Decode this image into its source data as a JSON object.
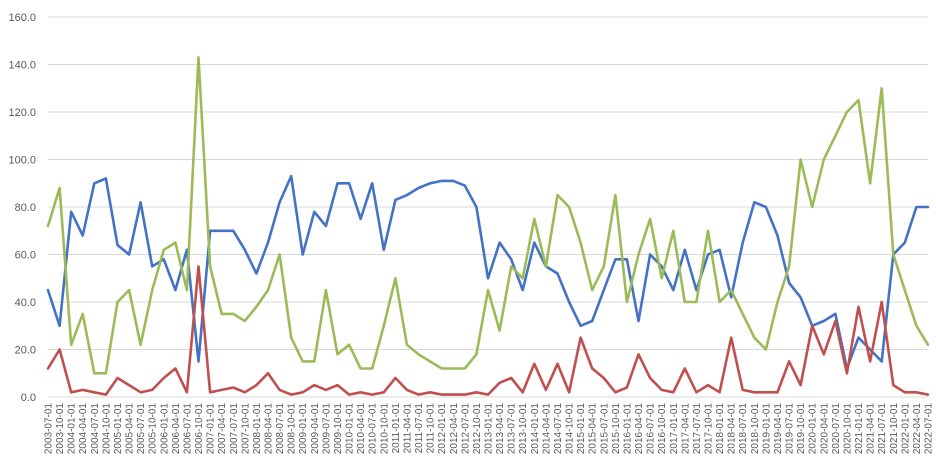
{
  "chart_data": {
    "type": "line",
    "title": "",
    "xlabel": "",
    "ylabel": "",
    "ylim": [
      0,
      160
    ],
    "y_ticks": [
      "0.0",
      "20.0",
      "40.0",
      "60.0",
      "80.0",
      "100.0",
      "120.0",
      "140.0",
      "160.0"
    ],
    "x_tick_labels": [
      "2003-07-01",
      "2003-10-01",
      "2004-01-01",
      "2004-04-01",
      "2004-07-01",
      "2004-10-01",
      "2005-01-01",
      "2005-04-01",
      "2005-07-01",
      "2005-10-01",
      "2006-01-01",
      "2006-04-01",
      "2006-07-01",
      "2006-10-01",
      "2007-01-01",
      "2007-04-01",
      "2007-07-01",
      "2007-10-01",
      "2008-01-01",
      "2008-04-01",
      "2008-07-01",
      "2008-10-01",
      "2009-01-01",
      "2009-04-01",
      "2009-07-01",
      "2009-10-01",
      "2010-01-01",
      "2010-04-01",
      "2010-07-01",
      "2010-10-01",
      "2011-01-01",
      "2011-04-01",
      "2011-07-01",
      "2011-10-01",
      "2012-01-01",
      "2012-04-01",
      "2012-07-01",
      "2012-10-01",
      "2013-01-01",
      "2013-04-01",
      "2013-07-01",
      "2013-10-01",
      "2014-01-01",
      "2014-04-01",
      "2014-07-01",
      "2014-10-01",
      "2015-01-01",
      "2015-04-01",
      "2015-07-01",
      "2015-10-01",
      "2016-01-01",
      "2016-04-01",
      "2016-07-01",
      "2016-10-01",
      "2017-01-01",
      "2017-04-01",
      "2017-07-01",
      "2017-10-01",
      "2018-01-01",
      "2018-04-01",
      "2018-07-01",
      "2018-10-01",
      "2019-01-01",
      "2019-04-01",
      "2019-07-01",
      "2019-10-01",
      "2020-01-01",
      "2020-04-01",
      "2020-07-01",
      "2020-10-01",
      "2021-01-01",
      "2021-04-01",
      "2021-07-01",
      "2021-10-01",
      "2022-01-01",
      "2022-04-01",
      "2022-07-01"
    ],
    "x": [
      2003.5,
      2003.75,
      2004.0,
      2004.25,
      2004.5,
      2004.75,
      2005.0,
      2005.25,
      2005.5,
      2005.75,
      2006.0,
      2006.25,
      2006.5,
      2006.75,
      2007.0,
      2007.25,
      2007.5,
      2007.75,
      2008.0,
      2008.25,
      2008.5,
      2008.75,
      2009.0,
      2009.25,
      2009.5,
      2009.75,
      2010.0,
      2010.25,
      2010.5,
      2010.75,
      2011.0,
      2011.25,
      2011.5,
      2011.75,
      2012.0,
      2012.25,
      2012.5,
      2012.75,
      2013.0,
      2013.25,
      2013.5,
      2013.75,
      2014.0,
      2014.25,
      2014.5,
      2014.75,
      2015.0,
      2015.25,
      2015.5,
      2015.75,
      2016.0,
      2016.25,
      2016.5,
      2016.75,
      2017.0,
      2017.25,
      2017.5,
      2017.75,
      2018.0,
      2018.25,
      2018.5,
      2018.75,
      2019.0,
      2019.25,
      2019.5,
      2019.75,
      2020.0,
      2020.25,
      2020.5,
      2020.75,
      2021.0,
      2021.25,
      2021.5,
      2021.75,
      2022.0,
      2022.25,
      2022.5
    ],
    "series": [
      {
        "color": "#4472c4",
        "values": [
          45,
          30,
          78,
          68,
          90,
          92,
          64,
          60,
          82,
          55,
          58,
          45,
          62,
          15,
          70,
          70,
          70,
          62,
          52,
          65,
          82,
          93,
          60,
          78,
          72,
          90,
          90,
          75,
          90,
          62,
          83,
          85,
          88,
          90,
          91,
          91,
          89,
          80,
          50,
          65,
          58,
          45,
          65,
          55,
          52,
          40,
          30,
          32,
          45,
          58,
          58,
          32,
          60,
          55,
          45,
          62,
          45,
          60,
          62,
          42,
          65,
          82,
          80,
          68,
          48,
          42,
          30,
          32,
          35,
          12,
          25,
          20,
          15,
          60,
          65,
          80,
          80
        ]
      },
      {
        "color": "#9bbb59",
        "values": [
          72,
          88,
          22,
          35,
          10,
          10,
          40,
          45,
          22,
          45,
          62,
          65,
          45,
          143,
          55,
          35,
          35,
          32,
          38,
          45,
          60,
          25,
          15,
          15,
          45,
          18,
          22,
          12,
          12,
          30,
          50,
          22,
          18,
          15,
          12,
          12,
          12,
          18,
          45,
          28,
          55,
          50,
          75,
          55,
          85,
          80,
          65,
          45,
          55,
          85,
          40,
          60,
          75,
          50,
          70,
          40,
          40,
          70,
          40,
          45,
          35,
          25,
          20,
          40,
          55,
          100,
          80,
          100,
          110,
          120,
          125,
          90,
          130,
          60,
          45,
          30,
          22
        ]
      },
      {
        "color": "#c0504d",
        "values": [
          12,
          20,
          2,
          3,
          2,
          1,
          8,
          5,
          2,
          3,
          8,
          12,
          2,
          55,
          2,
          3,
          4,
          2,
          5,
          10,
          3,
          1,
          2,
          5,
          3,
          5,
          1,
          2,
          1,
          2,
          8,
          3,
          1,
          2,
          1,
          1,
          1,
          2,
          1,
          6,
          8,
          2,
          14,
          3,
          14,
          2,
          25,
          12,
          8,
          2,
          4,
          18,
          8,
          3,
          2,
          12,
          2,
          5,
          2,
          25,
          3,
          2,
          2,
          2,
          15,
          5,
          30,
          18,
          32,
          10,
          38,
          15,
          40,
          5,
          2,
          2,
          1
        ]
      }
    ]
  }
}
